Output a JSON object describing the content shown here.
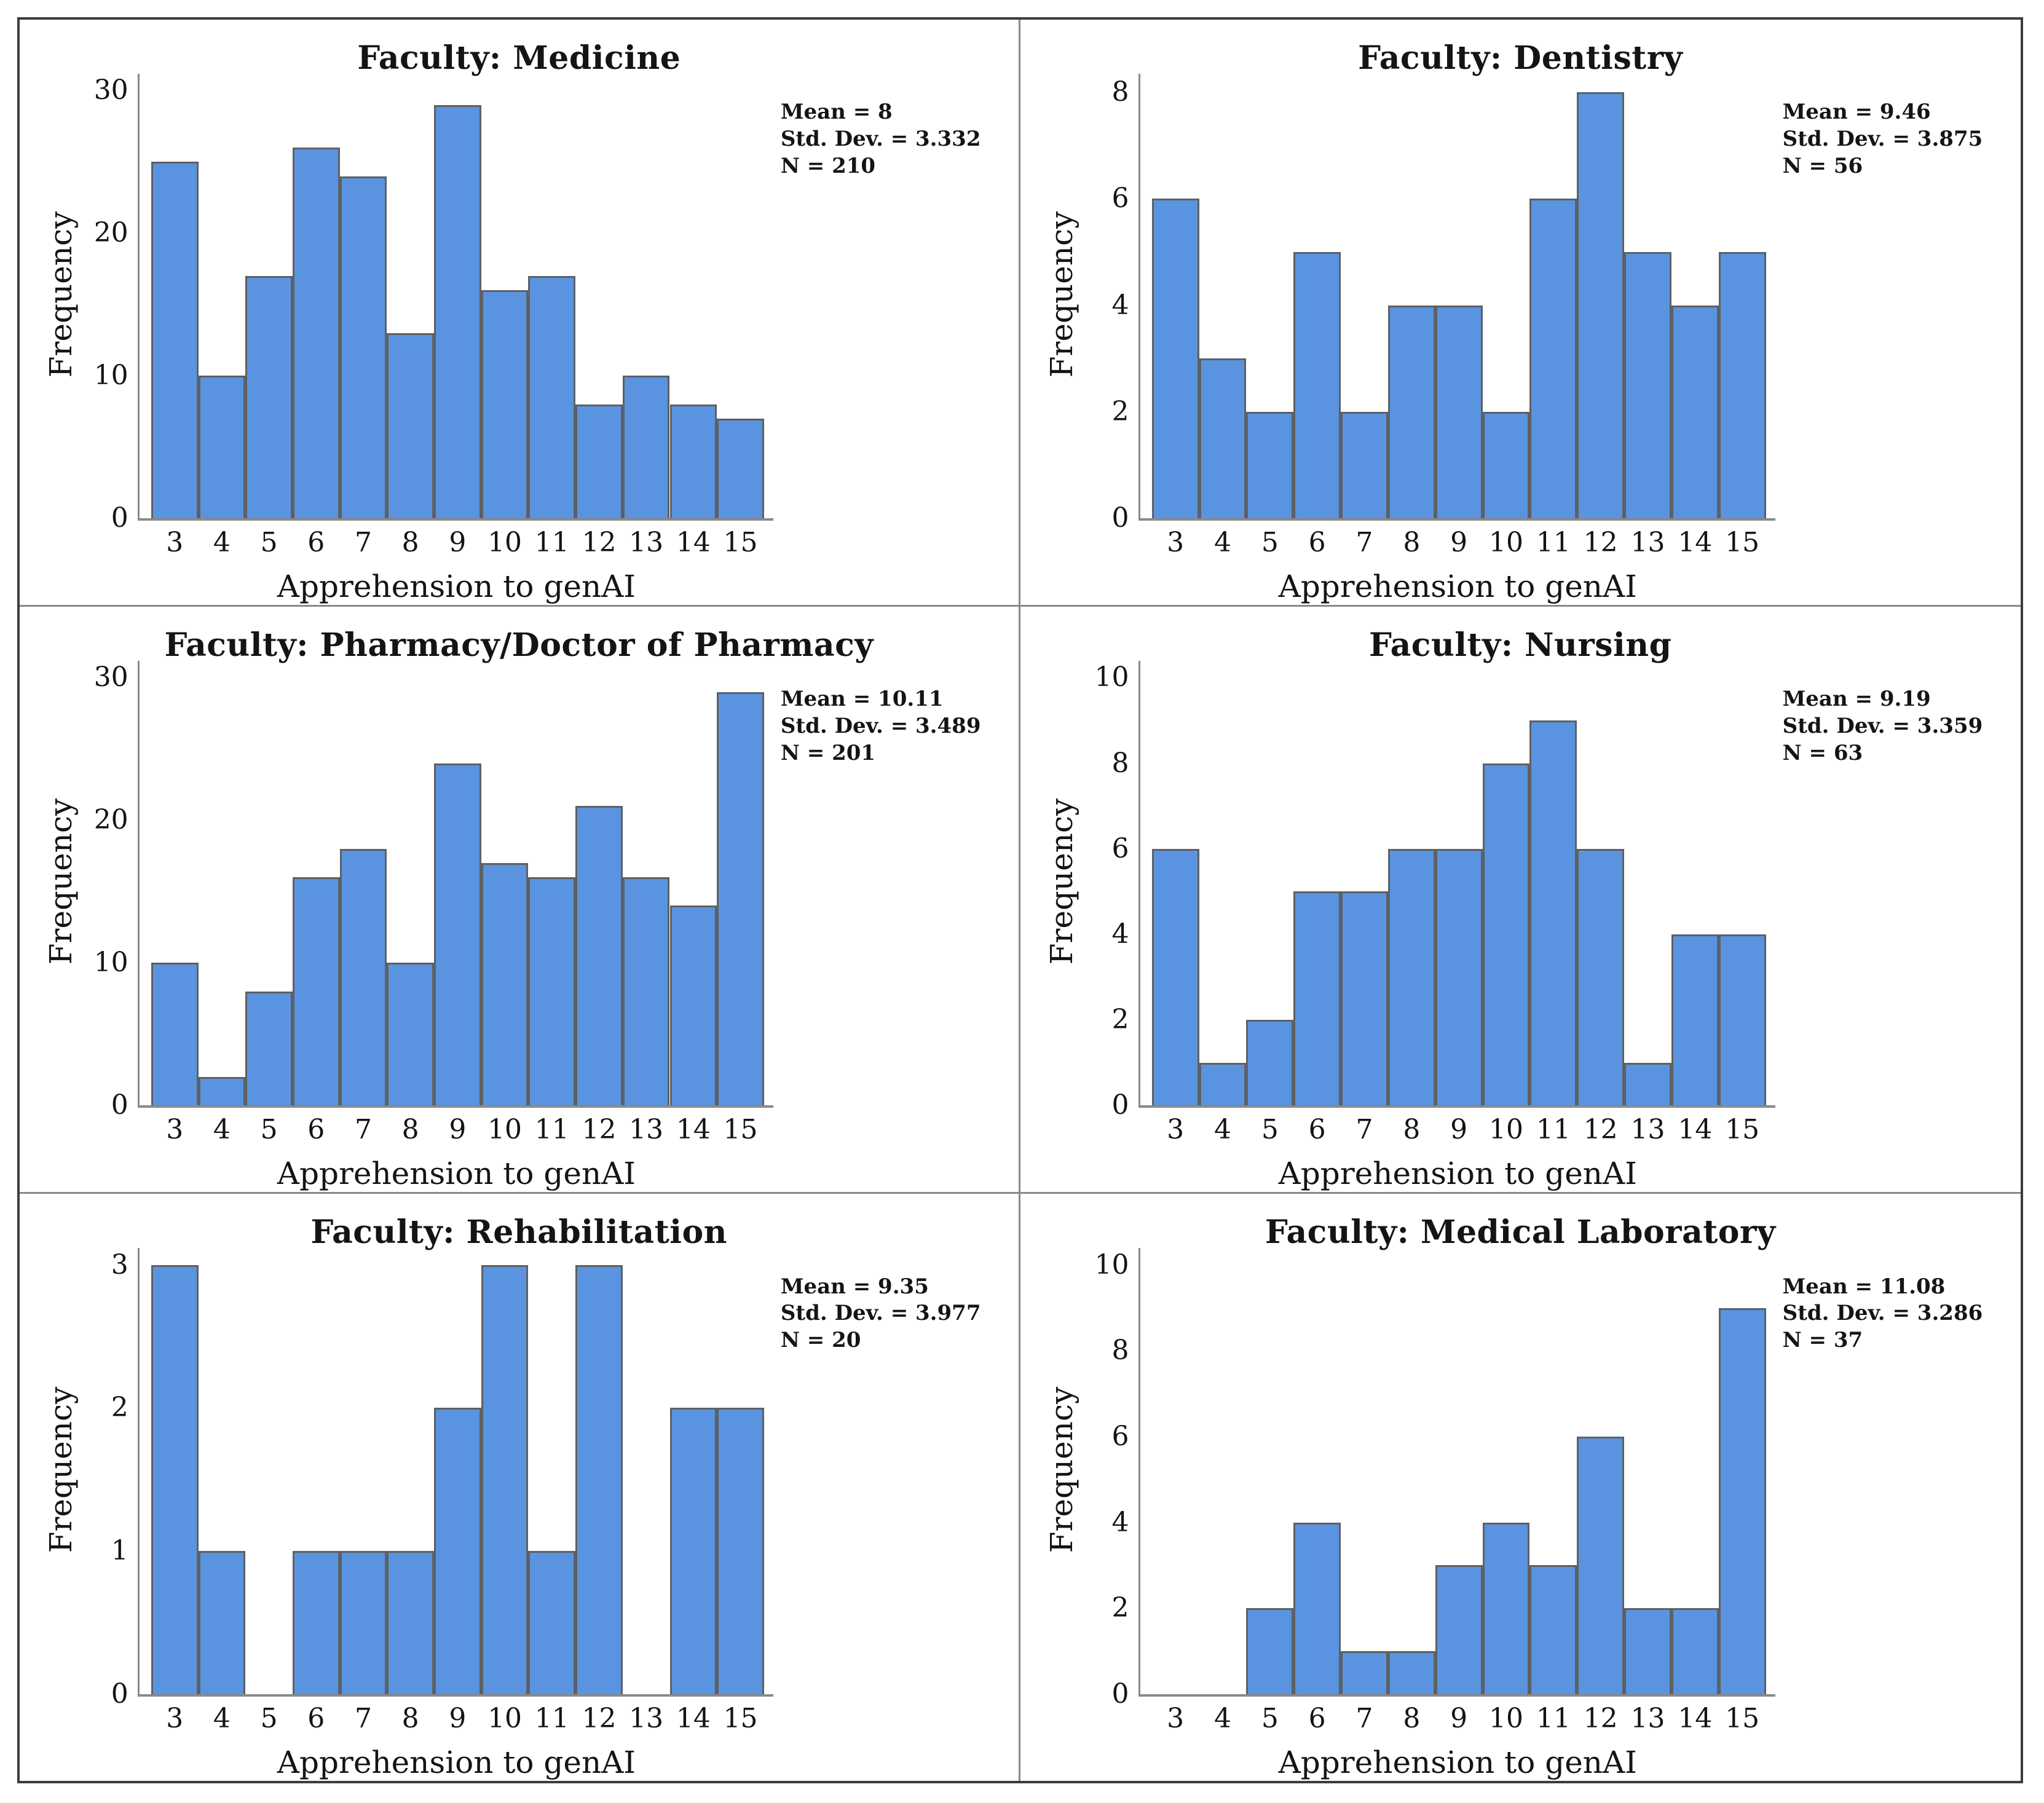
{
  "style": {
    "bar_fill": "#5A94E0",
    "bar_border": "#5d6064",
    "axis_color": "#8a8a8a",
    "outer_border_color": "#3d3d3d",
    "divider_color": "#8a8a8a",
    "text_color": "#141414"
  },
  "chart_data": [
    {
      "type": "bar",
      "title": "Faculty: Medicine",
      "xlabel": "Apprehension to genAI",
      "ylabel": "Frequency",
      "categories": [
        3,
        4,
        5,
        6,
        7,
        8,
        9,
        10,
        11,
        12,
        13,
        14,
        15
      ],
      "values": [
        25,
        10,
        17,
        26,
        24,
        13,
        29,
        16,
        17,
        8,
        10,
        8,
        7
      ],
      "yticks": [
        0,
        10,
        20,
        30
      ],
      "ylim": [
        0,
        31.2
      ],
      "grid": false,
      "annotations": [
        "Mean = 8",
        "Std. Dev. = 3.332",
        "N = 210"
      ],
      "mean": 8,
      "std_dev": 3.332,
      "n": 210
    },
    {
      "type": "bar",
      "title": "Faculty: Dentistry",
      "xlabel": "Apprehension to genAI",
      "ylabel": "Frequency",
      "categories": [
        3,
        4,
        5,
        6,
        7,
        8,
        9,
        10,
        11,
        12,
        13,
        14,
        15
      ],
      "values": [
        6,
        3,
        2,
        5,
        2,
        4,
        4,
        2,
        6,
        8,
        5,
        4,
        5
      ],
      "yticks": [
        0,
        2,
        4,
        6,
        8
      ],
      "ylim": [
        0,
        8.35
      ],
      "grid": false,
      "annotations": [
        "Mean = 9.46",
        "Std. Dev. = 3.875",
        "N = 56"
      ],
      "mean": 9.46,
      "std_dev": 3.875,
      "n": 56
    },
    {
      "type": "bar",
      "title": "Faculty: Pharmacy/Doctor of Pharmacy",
      "xlabel": "Apprehension to genAI",
      "ylabel": "Frequency",
      "categories": [
        3,
        4,
        5,
        6,
        7,
        8,
        9,
        10,
        11,
        12,
        13,
        14,
        15
      ],
      "values": [
        10,
        2,
        8,
        16,
        18,
        10,
        24,
        17,
        16,
        21,
        16,
        14,
        29
      ],
      "yticks": [
        0,
        10,
        20,
        30
      ],
      "ylim": [
        0,
        31.2
      ],
      "grid": false,
      "annotations": [
        "Mean = 10.11",
        "Std. Dev. = 3.489",
        "N = 201"
      ],
      "mean": 10.11,
      "std_dev": 3.489,
      "n": 201
    },
    {
      "type": "bar",
      "title": "Faculty: Nursing",
      "xlabel": "Apprehension to genAI",
      "ylabel": "Frequency",
      "categories": [
        3,
        4,
        5,
        6,
        7,
        8,
        9,
        10,
        11,
        12,
        13,
        14,
        15
      ],
      "values": [
        6,
        1,
        2,
        5,
        5,
        6,
        6,
        8,
        9,
        6,
        1,
        4,
        4
      ],
      "yticks": [
        0,
        2,
        4,
        6,
        8,
        10
      ],
      "ylim": [
        0,
        10.4
      ],
      "grid": false,
      "annotations": [
        "Mean = 9.19",
        "Std. Dev. = 3.359",
        "N = 63"
      ],
      "mean": 9.19,
      "std_dev": 3.359,
      "n": 63
    },
    {
      "type": "bar",
      "title": "Faculty: Rehabilitation",
      "xlabel": "Apprehension to genAI",
      "ylabel": "Frequency",
      "categories": [
        3,
        4,
        5,
        6,
        7,
        8,
        9,
        10,
        11,
        12,
        13,
        14,
        15
      ],
      "values": [
        3,
        1,
        0,
        1,
        1,
        1,
        2,
        3,
        1,
        3,
        0,
        2,
        2
      ],
      "yticks": [
        0,
        1,
        2,
        3
      ],
      "ylim": [
        0,
        3.12
      ],
      "grid": false,
      "annotations": [
        "Mean = 9.35",
        "Std. Dev. = 3.977",
        "N = 20"
      ],
      "mean": 9.35,
      "std_dev": 3.977,
      "n": 20
    },
    {
      "type": "bar",
      "title": "Faculty: Medical Laboratory",
      "xlabel": "Apprehension to genAI",
      "ylabel": "Frequency",
      "categories": [
        3,
        4,
        5,
        6,
        7,
        8,
        9,
        10,
        11,
        12,
        13,
        14,
        15
      ],
      "values": [
        0,
        0,
        2,
        4,
        1,
        1,
        3,
        4,
        3,
        6,
        2,
        2,
        9
      ],
      "yticks": [
        0,
        2,
        4,
        6,
        8,
        10
      ],
      "ylim": [
        0,
        10.4
      ],
      "grid": false,
      "annotations": [
        "Mean = 11.08",
        "Std. Dev. = 3.286",
        "N = 37"
      ],
      "mean": 11.08,
      "std_dev": 3.286,
      "n": 37
    }
  ]
}
